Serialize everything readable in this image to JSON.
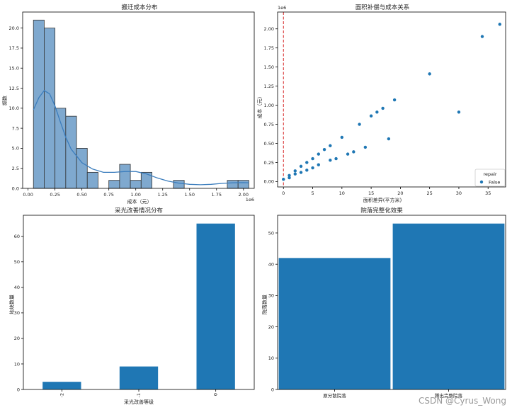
{
  "chart_data": [
    {
      "type": "histogram",
      "title": "搬迁成本分布",
      "xlabel": "成本（元）",
      "ylabel": "频数",
      "offset_label": "1e6",
      "xlim": [
        -0.05,
        2.1
      ],
      "ylim": [
        0,
        22
      ],
      "xticks": [
        0.0,
        0.25,
        0.5,
        0.75,
        1.0,
        1.25,
        1.5,
        1.75,
        2.0
      ],
      "xtick_labels": [
        "0.00",
        "0.25",
        "0.50",
        "0.75",
        "1.00",
        "1.25",
        "1.50",
        "1.75",
        "2.00"
      ],
      "yticks": [
        0,
        2.5,
        5,
        7.5,
        10,
        12.5,
        15,
        17.5,
        20
      ],
      "ytick_labels": [
        "0.0",
        "2.5",
        "5.0",
        "7.5",
        "10.0",
        "12.5",
        "15.0",
        "17.5",
        "20.0"
      ],
      "bins": [
        {
          "x0": 0.05,
          "x1": 0.15,
          "count": 21
        },
        {
          "x0": 0.15,
          "x1": 0.25,
          "count": 20
        },
        {
          "x0": 0.25,
          "x1": 0.35,
          "count": 10
        },
        {
          "x0": 0.35,
          "x1": 0.45,
          "count": 9
        },
        {
          "x0": 0.45,
          "x1": 0.55,
          "count": 5
        },
        {
          "x0": 0.55,
          "x1": 0.65,
          "count": 2
        },
        {
          "x0": 0.75,
          "x1": 0.85,
          "count": 1
        },
        {
          "x0": 0.85,
          "x1": 0.95,
          "count": 3
        },
        {
          "x0": 0.95,
          "x1": 1.05,
          "count": 1
        },
        {
          "x0": 1.05,
          "x1": 1.15,
          "count": 2
        },
        {
          "x0": 1.35,
          "x1": 1.45,
          "count": 1
        },
        {
          "x0": 1.85,
          "x1": 1.95,
          "count": 1
        },
        {
          "x0": 1.95,
          "x1": 2.05,
          "count": 1
        }
      ],
      "kde": [
        [
          0.05,
          9.8
        ],
        [
          0.1,
          11.3
        ],
        [
          0.15,
          12.2
        ],
        [
          0.2,
          11.8
        ],
        [
          0.25,
          10.3
        ],
        [
          0.3,
          8.3
        ],
        [
          0.35,
          6.4
        ],
        [
          0.4,
          4.9
        ],
        [
          0.5,
          3.2
        ],
        [
          0.6,
          2.4
        ],
        [
          0.7,
          2.0
        ],
        [
          0.8,
          2.0
        ],
        [
          0.9,
          2.1
        ],
        [
          1.0,
          2.1
        ],
        [
          1.1,
          1.8
        ],
        [
          1.2,
          1.3
        ],
        [
          1.3,
          0.9
        ],
        [
          1.4,
          0.65
        ],
        [
          1.5,
          0.5
        ],
        [
          1.6,
          0.45
        ],
        [
          1.7,
          0.5
        ],
        [
          1.8,
          0.62
        ],
        [
          1.9,
          0.7
        ],
        [
          2.0,
          0.72
        ],
        [
          2.05,
          0.7
        ]
      ],
      "bar_color": "#7fa9cf",
      "line_color": "#3b7dbd"
    },
    {
      "type": "scatter",
      "title": "面积补偿与成本关系",
      "xlabel": "面积差异(平方米)",
      "ylabel": "成本（元）",
      "offset_label": "1e6",
      "xlim": [
        -1,
        38
      ],
      "ylim": [
        -0.07,
        2.22
      ],
      "xticks": [
        0,
        5,
        10,
        15,
        20,
        25,
        30,
        35
      ],
      "yticks": [
        0,
        0.25,
        0.5,
        0.75,
        1.0,
        1.25,
        1.5,
        1.75,
        2.0
      ],
      "ytick_labels": [
        "0.00",
        "0.25",
        "0.50",
        "0.75",
        "1.00",
        "1.25",
        "1.50",
        "1.75",
        "2.00"
      ],
      "vline_x": 0,
      "vline_color": "#d62728",
      "legend": {
        "title": "repair",
        "entries": [
          "False"
        ],
        "position": "lower right"
      },
      "point_color": "#1f77b4",
      "points": [
        [
          0,
          0.03
        ],
        [
          1,
          0.05
        ],
        [
          1,
          0.08
        ],
        [
          2,
          0.1
        ],
        [
          2,
          0.14
        ],
        [
          3,
          0.12
        ],
        [
          3,
          0.2
        ],
        [
          4,
          0.15
        ],
        [
          4,
          0.25
        ],
        [
          5,
          0.18
        ],
        [
          5,
          0.3
        ],
        [
          6,
          0.22
        ],
        [
          6,
          0.36
        ],
        [
          7,
          0.42
        ],
        [
          8,
          0.28
        ],
        [
          8,
          0.47
        ],
        [
          9,
          0.3
        ],
        [
          10,
          0.58
        ],
        [
          11,
          0.36
        ],
        [
          12,
          0.39
        ],
        [
          13,
          0.75
        ],
        [
          14,
          0.45
        ],
        [
          15,
          0.86
        ],
        [
          16,
          0.91
        ],
        [
          17,
          0.96
        ],
        [
          18,
          0.56
        ],
        [
          19,
          1.07
        ],
        [
          25,
          1.41
        ],
        [
          30,
          0.91
        ],
        [
          34,
          1.9
        ],
        [
          37,
          2.06
        ]
      ]
    },
    {
      "type": "bar",
      "title": "采光改善情况分布",
      "xlabel": "采光改善等级",
      "ylabel": "地块数量",
      "categories": [
        "-2",
        "-1",
        "0"
      ],
      "values": [
        3,
        9,
        65
      ],
      "ylim": [
        0,
        68.25
      ],
      "yticks": [
        0,
        10,
        20,
        30,
        40,
        50,
        60
      ],
      "bar_color": "#1f77b4"
    },
    {
      "type": "bar",
      "title": "院落完整化效果",
      "xlabel": "",
      "ylabel": "院落数量",
      "categories": [
        "原分散院落",
        "腾出完整院落"
      ],
      "values": [
        42,
        53
      ],
      "ylim": [
        0,
        55.65
      ],
      "yticks": [
        0,
        10,
        20,
        30,
        40,
        50
      ],
      "bar_color": "#1f77b4"
    }
  ],
  "watermark": "CSDN @Cyrus_Wong"
}
